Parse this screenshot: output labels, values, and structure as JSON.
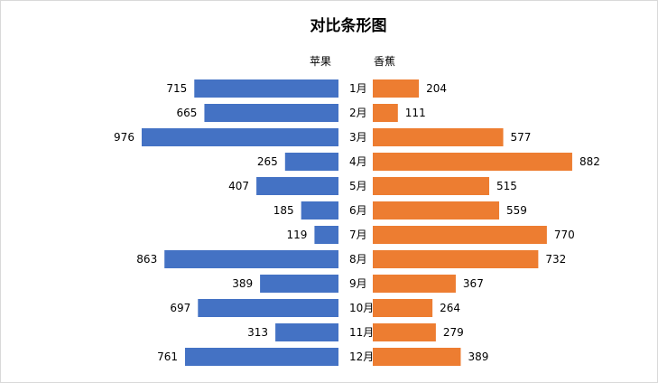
{
  "chart_data": {
    "type": "bar",
    "orientation": "horizontal",
    "title": "对比条形图",
    "categories": [
      "1月",
      "2月",
      "3月",
      "4月",
      "5月",
      "6月",
      "7月",
      "8月",
      "9月",
      "10月",
      "11月",
      "12月"
    ],
    "series": [
      {
        "name": "苹果",
        "color": "#4472C4",
        "values": [
          715,
          665,
          976,
          265,
          407,
          185,
          119,
          863,
          389,
          697,
          313,
          761
        ]
      },
      {
        "name": "香蕉",
        "color": "#ED7D31",
        "values": [
          204,
          111,
          577,
          882,
          515,
          559,
          770,
          732,
          367,
          264,
          279,
          389
        ]
      }
    ],
    "grid": false,
    "legend": "top"
  }
}
